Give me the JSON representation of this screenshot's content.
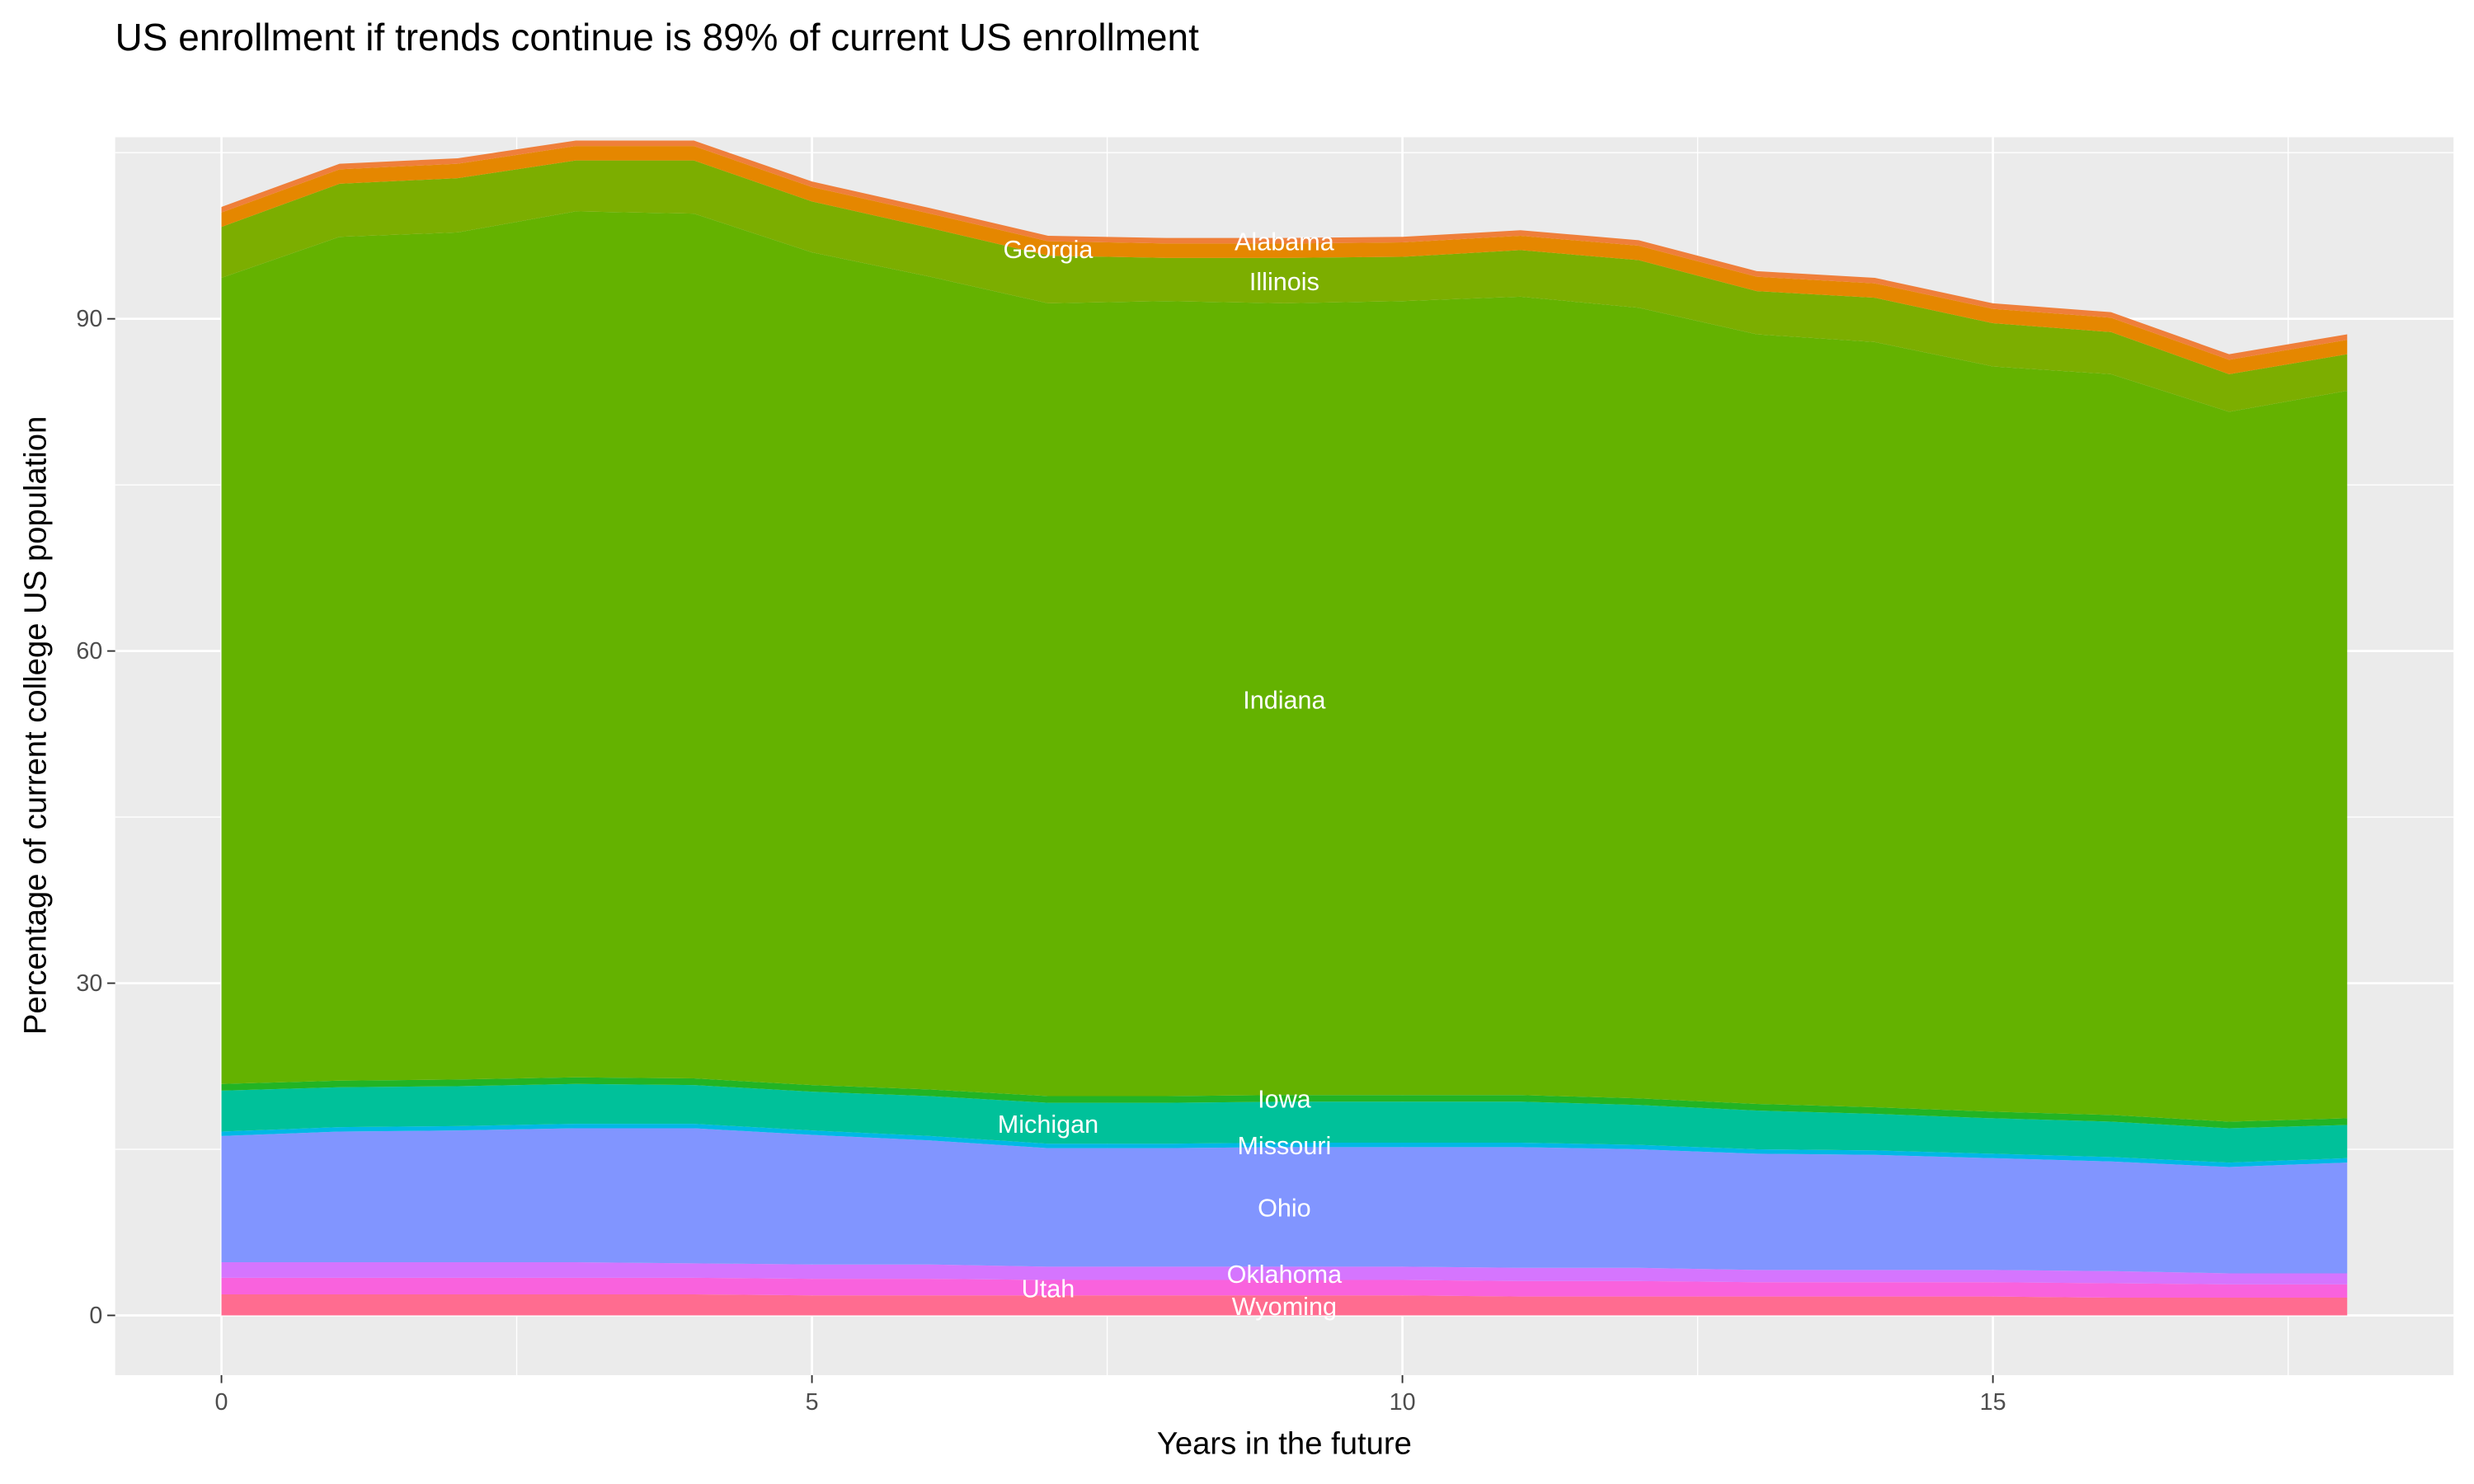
{
  "chart_data": {
    "type": "area",
    "stacked": true,
    "title": "US enrollment if trends continue is 89% of current US enrollment",
    "xlabel": "Years in the future",
    "ylabel": "Percentage of current college US population",
    "xlim": [
      -0.9,
      18.9
    ],
    "ylim": [
      -5.4,
      106.4
    ],
    "xticks": [
      0,
      5,
      10,
      15
    ],
    "yticks": [
      0,
      30,
      60,
      90
    ],
    "grid": true,
    "legend": "none",
    "label_x": 9,
    "x": [
      0,
      1,
      2,
      3,
      4,
      5,
      6,
      7,
      8,
      9,
      10,
      11,
      12,
      13,
      14,
      15,
      16,
      17,
      18
    ],
    "series": [
      {
        "name": "Wyoming",
        "color": "#FF6C90",
        "values": [
          1.9,
          1.9,
          1.9,
          1.9,
          1.9,
          1.8,
          1.8,
          1.8,
          1.8,
          1.8,
          1.8,
          1.7,
          1.7,
          1.7,
          1.7,
          1.7,
          1.6,
          1.6,
          1.6
        ]
      },
      {
        "name": "Utah",
        "color": "#F962DD",
        "values": [
          1.5,
          1.5,
          1.5,
          1.5,
          1.5,
          1.5,
          1.5,
          1.4,
          1.4,
          1.4,
          1.4,
          1.4,
          1.4,
          1.3,
          1.3,
          1.3,
          1.3,
          1.2,
          1.2
        ]
      },
      {
        "name": "Oklahoma",
        "color": "#D575FE",
        "values": [
          1.4,
          1.4,
          1.4,
          1.4,
          1.3,
          1.3,
          1.3,
          1.2,
          1.2,
          1.2,
          1.2,
          1.2,
          1.2,
          1.1,
          1.1,
          1.1,
          1.1,
          1.0,
          1.0
        ]
      },
      {
        "name": "Ohio",
        "color": "#8195FF",
        "values": [
          11.4,
          11.8,
          11.9,
          12.1,
          12.2,
          11.7,
          11.2,
          10.7,
          10.7,
          10.8,
          10.8,
          10.9,
          10.7,
          10.5,
          10.4,
          10.1,
          9.9,
          9.6,
          10.0
        ]
      },
      {
        "name": "Missouri",
        "color": "#00B8E5",
        "values": [
          0.4,
          0.4,
          0.4,
          0.4,
          0.4,
          0.4,
          0.4,
          0.4,
          0.4,
          0.4,
          0.4,
          0.4,
          0.4,
          0.4,
          0.4,
          0.4,
          0.4,
          0.4,
          0.4
        ]
      },
      {
        "name": "Michigan",
        "color": "#00C19A",
        "values": [
          3.7,
          3.6,
          3.6,
          3.6,
          3.5,
          3.5,
          3.6,
          3.7,
          3.7,
          3.7,
          3.7,
          3.7,
          3.6,
          3.5,
          3.3,
          3.2,
          3.2,
          3.1,
          3.0
        ]
      },
      {
        "name": "Iowa",
        "color": "#22B424",
        "values": [
          0.6,
          0.6,
          0.6,
          0.6,
          0.6,
          0.6,
          0.6,
          0.6,
          0.6,
          0.6,
          0.6,
          0.6,
          0.6,
          0.6,
          0.6,
          0.6,
          0.6,
          0.6,
          0.6
        ]
      },
      {
        "name": "Indiana",
        "color": "#64B200",
        "values": [
          72.8,
          76.2,
          76.5,
          78.2,
          78.1,
          75.2,
          73.4,
          71.6,
          71.8,
          71.5,
          71.7,
          72.1,
          71.4,
          69.5,
          69.1,
          67.3,
          66.9,
          64.1,
          65.7
        ]
      },
      {
        "name": "Illinois",
        "color": "#7CAE00",
        "values": [
          4.6,
          4.8,
          4.9,
          4.6,
          4.8,
          4.6,
          4.4,
          4.3,
          3.9,
          4.1,
          4.0,
          4.2,
          4.3,
          3.9,
          4.0,
          3.9,
          3.8,
          3.4,
          3.3
        ]
      },
      {
        "name": "Georgia",
        "color": "#E58700",
        "values": [
          1.3,
          1.3,
          1.3,
          1.3,
          1.3,
          1.3,
          1.3,
          1.3,
          1.3,
          1.3,
          1.3,
          1.3,
          1.3,
          1.3,
          1.3,
          1.3,
          1.3,
          1.3,
          1.3
        ]
      },
      {
        "name": "Alabama",
        "color": "#EF7F3A",
        "values": [
          0.5,
          0.5,
          0.5,
          0.5,
          0.5,
          0.5,
          0.5,
          0.5,
          0.5,
          0.5,
          0.5,
          0.5,
          0.5,
          0.5,
          0.5,
          0.5,
          0.5,
          0.5,
          0.5
        ]
      }
    ]
  }
}
